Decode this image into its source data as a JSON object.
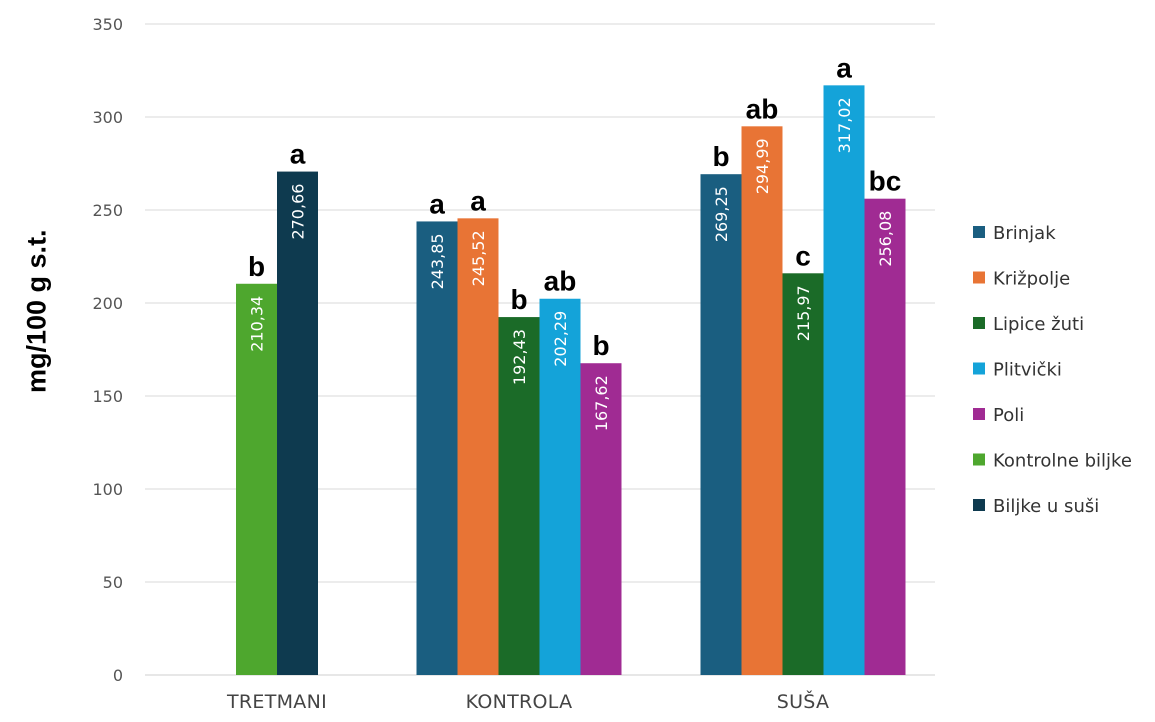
{
  "chart_data": {
    "type": "bar",
    "xlabel": "",
    "ylabel": "mg/100 g s.t.",
    "ylim": [
      0,
      350
    ],
    "yticks": [
      "0",
      "50",
      "100",
      "150",
      "200",
      "250",
      "300",
      "350"
    ],
    "grid": true,
    "legend_position": "right",
    "categories": [
      "TRETMANI",
      "KONTROLA",
      "SUŠA"
    ],
    "series": [
      {
        "name": "Brinjak",
        "color": "#1a5e80",
        "values": [
          null,
          243.85,
          269.25
        ],
        "labels": [
          null,
          "243,85",
          "269,25"
        ],
        "letters": [
          null,
          "a",
          "b"
        ]
      },
      {
        "name": "Križpolje",
        "color": "#e87435",
        "values": [
          null,
          245.52,
          294.99
        ],
        "labels": [
          null,
          "245,52",
          "294,99"
        ],
        "letters": [
          null,
          "a",
          "ab"
        ]
      },
      {
        "name": "Lipice žuti",
        "color": "#1b6b28",
        "values": [
          null,
          192.43,
          215.97
        ],
        "labels": [
          null,
          "192,43",
          "215,97"
        ],
        "letters": [
          null,
          "b",
          "c"
        ]
      },
      {
        "name": "Plitvički",
        "color": "#14a3d9",
        "values": [
          null,
          202.29,
          317.02
        ],
        "labels": [
          null,
          "202,29",
          "317,02"
        ],
        "letters": [
          null,
          "ab",
          "a"
        ]
      },
      {
        "name": "Poli",
        "color": "#a02b93",
        "values": [
          null,
          167.62,
          256.08
        ],
        "labels": [
          null,
          "167,62",
          "256,08"
        ],
        "letters": [
          null,
          "b",
          "bc"
        ]
      },
      {
        "name": "Kontrolne biljke",
        "color": "#4ea72e",
        "values": [
          210.34,
          null,
          null
        ],
        "labels": [
          "210,34",
          null,
          null
        ],
        "letters": [
          "b",
          null,
          null
        ]
      },
      {
        "name": "Biljke u suši",
        "color": "#0e3a4f",
        "values": [
          270.66,
          null,
          null
        ],
        "labels": [
          "270,66",
          null,
          null
        ],
        "letters": [
          "a",
          null,
          null
        ]
      }
    ]
  }
}
